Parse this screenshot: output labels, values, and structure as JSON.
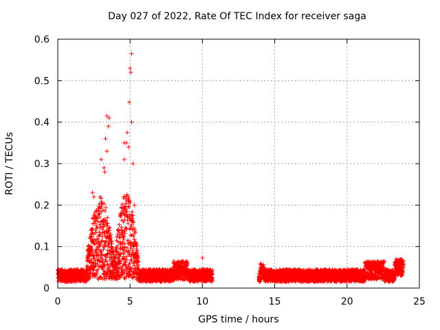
{
  "chart_data": {
    "type": "scatter",
    "title": "Day 027 of 2022, Rate Of TEC Index for receiver saga",
    "xlabel": "GPS time / hours",
    "ylabel": "ROTI / TECUs",
    "xlim": [
      0,
      25
    ],
    "ylim": [
      0,
      0.6
    ],
    "xticks": [
      0,
      5,
      10,
      15,
      20,
      25
    ],
    "yticks": [
      0,
      0.1,
      0.2,
      0.3,
      0.4,
      0.5,
      0.6
    ],
    "grid": true,
    "marker": "+",
    "color": "#ff0000",
    "series": [
      {
        "name": "ROTI",
        "segments": [
          {
            "t_start": 0.0,
            "t_end": 10.7
          },
          {
            "t_start": 13.9,
            "t_end": 23.9
          }
        ],
        "notable_points": [
          {
            "x": 5.1,
            "y": 0.565
          },
          {
            "x": 5.0,
            "y": 0.53
          },
          {
            "x": 5.05,
            "y": 0.52
          },
          {
            "x": 4.95,
            "y": 0.448
          },
          {
            "x": 5.1,
            "y": 0.4
          },
          {
            "x": 3.4,
            "y": 0.415
          },
          {
            "x": 3.55,
            "y": 0.41
          },
          {
            "x": 3.5,
            "y": 0.39
          },
          {
            "x": 4.8,
            "y": 0.375
          },
          {
            "x": 4.6,
            "y": 0.35
          },
          {
            "x": 4.75,
            "y": 0.35
          },
          {
            "x": 3.3,
            "y": 0.36
          },
          {
            "x": 3.4,
            "y": 0.33
          },
          {
            "x": 4.9,
            "y": 0.34
          },
          {
            "x": 3.0,
            "y": 0.31
          },
          {
            "x": 3.2,
            "y": 0.29
          },
          {
            "x": 3.25,
            "y": 0.28
          },
          {
            "x": 4.6,
            "y": 0.31
          },
          {
            "x": 5.2,
            "y": 0.3
          },
          {
            "x": 5.3,
            "y": 0.2
          },
          {
            "x": 2.4,
            "y": 0.23
          },
          {
            "x": 2.5,
            "y": 0.22
          },
          {
            "x": 10.0,
            "y": 0.073
          }
        ]
      }
    ]
  }
}
